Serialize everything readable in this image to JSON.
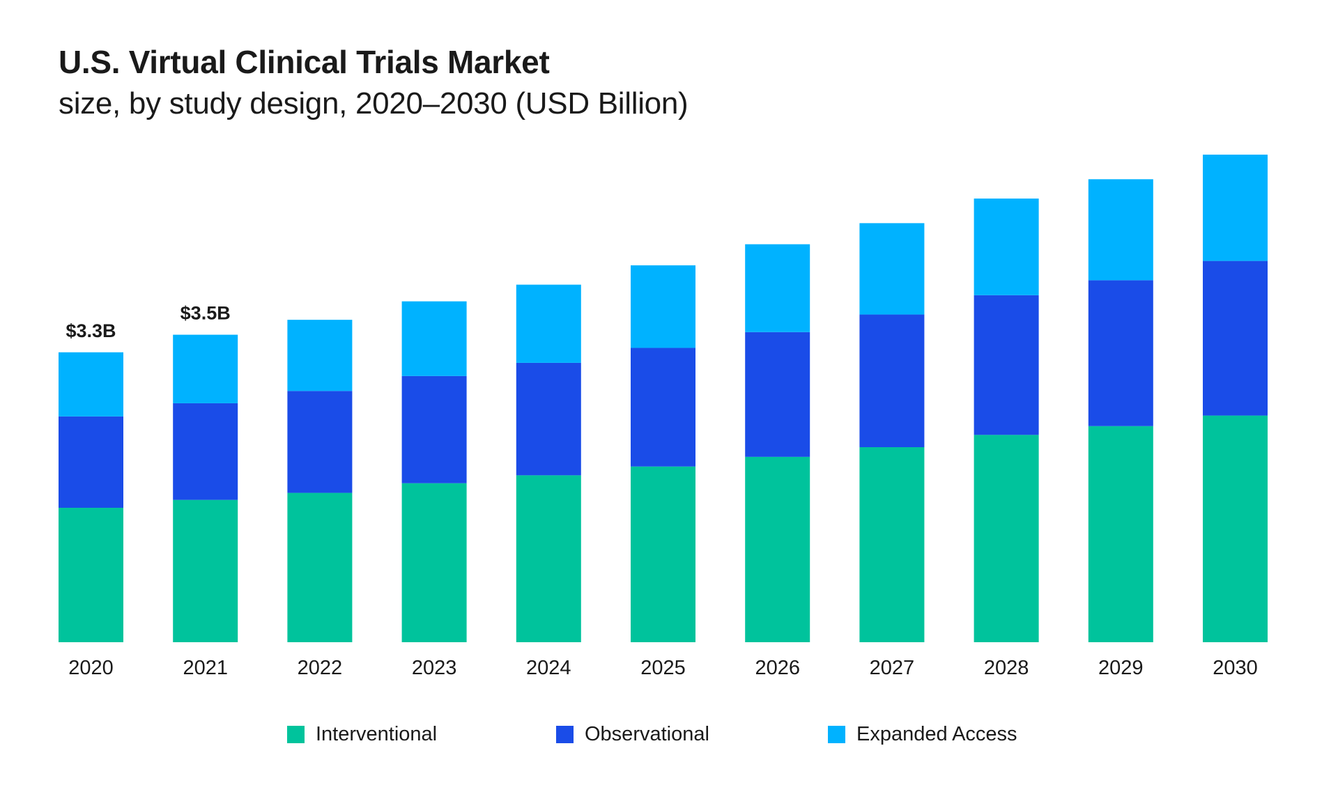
{
  "header": {
    "title": "U.S. Virtual Clinical Trials Market",
    "subtitle": "size, by study design, 2020–2030 (USD Billion)"
  },
  "chart_data": {
    "type": "bar",
    "stacked": true,
    "categories": [
      "2020",
      "2021",
      "2022",
      "2023",
      "2024",
      "2025",
      "2026",
      "2027",
      "2028",
      "2029",
      "2030"
    ],
    "series": [
      {
        "name": "Interventional",
        "color": "#00c39c",
        "values": [
          1.53,
          1.62,
          1.7,
          1.81,
          1.9,
          2.0,
          2.11,
          2.22,
          2.36,
          2.46,
          2.58
        ]
      },
      {
        "name": "Observational",
        "color": "#1a4ce8",
        "values": [
          1.04,
          1.1,
          1.16,
          1.22,
          1.28,
          1.35,
          1.42,
          1.51,
          1.59,
          1.66,
          1.76
        ]
      },
      {
        "name": "Expanded Access",
        "color": "#00b2ff",
        "values": [
          0.73,
          0.78,
          0.81,
          0.85,
          0.89,
          0.94,
          1.0,
          1.04,
          1.1,
          1.15,
          1.21
        ]
      }
    ],
    "data_labels": [
      {
        "category": "2020",
        "text": "$3.3B"
      },
      {
        "category": "2021",
        "text": "$3.5B"
      }
    ],
    "ylim": [
      0,
      5.55
    ],
    "grid": false,
    "legend_position": "bottom"
  }
}
